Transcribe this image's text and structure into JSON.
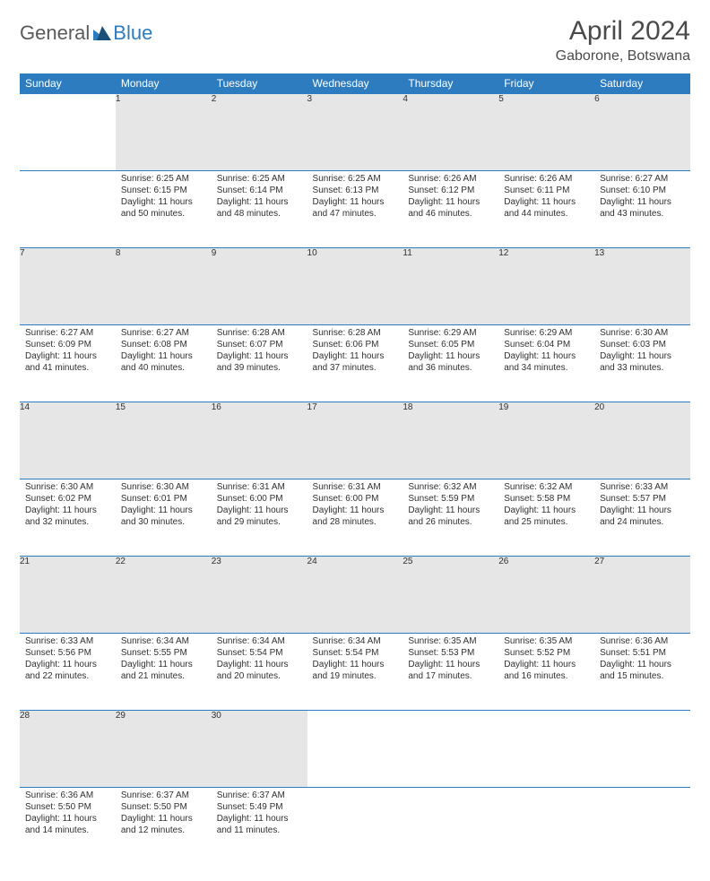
{
  "logo": {
    "text1": "General",
    "text2": "Blue"
  },
  "title": "April 2024",
  "subtitle": "Gaborone, Botswana",
  "colors": {
    "header_bg": "#2e7cc0",
    "header_text": "#ffffff",
    "daynum_bg": "#e6e6e6",
    "border": "#2e7cc0",
    "body_text": "#303030",
    "title_text": "#4a4a4a",
    "page_bg": "#ffffff"
  },
  "days": [
    "Sunday",
    "Monday",
    "Tuesday",
    "Wednesday",
    "Thursday",
    "Friday",
    "Saturday"
  ],
  "weeks": [
    {
      "nums": [
        "",
        "1",
        "2",
        "3",
        "4",
        "5",
        "6"
      ],
      "cells": [
        null,
        {
          "sunrise": "Sunrise: 6:25 AM",
          "sunset": "Sunset: 6:15 PM",
          "daylight": "Daylight: 11 hours and 50 minutes."
        },
        {
          "sunrise": "Sunrise: 6:25 AM",
          "sunset": "Sunset: 6:14 PM",
          "daylight": "Daylight: 11 hours and 48 minutes."
        },
        {
          "sunrise": "Sunrise: 6:25 AM",
          "sunset": "Sunset: 6:13 PM",
          "daylight": "Daylight: 11 hours and 47 minutes."
        },
        {
          "sunrise": "Sunrise: 6:26 AM",
          "sunset": "Sunset: 6:12 PM",
          "daylight": "Daylight: 11 hours and 46 minutes."
        },
        {
          "sunrise": "Sunrise: 6:26 AM",
          "sunset": "Sunset: 6:11 PM",
          "daylight": "Daylight: 11 hours and 44 minutes."
        },
        {
          "sunrise": "Sunrise: 6:27 AM",
          "sunset": "Sunset: 6:10 PM",
          "daylight": "Daylight: 11 hours and 43 minutes."
        }
      ]
    },
    {
      "nums": [
        "7",
        "8",
        "9",
        "10",
        "11",
        "12",
        "13"
      ],
      "cells": [
        {
          "sunrise": "Sunrise: 6:27 AM",
          "sunset": "Sunset: 6:09 PM",
          "daylight": "Daylight: 11 hours and 41 minutes."
        },
        {
          "sunrise": "Sunrise: 6:27 AM",
          "sunset": "Sunset: 6:08 PM",
          "daylight": "Daylight: 11 hours and 40 minutes."
        },
        {
          "sunrise": "Sunrise: 6:28 AM",
          "sunset": "Sunset: 6:07 PM",
          "daylight": "Daylight: 11 hours and 39 minutes."
        },
        {
          "sunrise": "Sunrise: 6:28 AM",
          "sunset": "Sunset: 6:06 PM",
          "daylight": "Daylight: 11 hours and 37 minutes."
        },
        {
          "sunrise": "Sunrise: 6:29 AM",
          "sunset": "Sunset: 6:05 PM",
          "daylight": "Daylight: 11 hours and 36 minutes."
        },
        {
          "sunrise": "Sunrise: 6:29 AM",
          "sunset": "Sunset: 6:04 PM",
          "daylight": "Daylight: 11 hours and 34 minutes."
        },
        {
          "sunrise": "Sunrise: 6:30 AM",
          "sunset": "Sunset: 6:03 PM",
          "daylight": "Daylight: 11 hours and 33 minutes."
        }
      ]
    },
    {
      "nums": [
        "14",
        "15",
        "16",
        "17",
        "18",
        "19",
        "20"
      ],
      "cells": [
        {
          "sunrise": "Sunrise: 6:30 AM",
          "sunset": "Sunset: 6:02 PM",
          "daylight": "Daylight: 11 hours and 32 minutes."
        },
        {
          "sunrise": "Sunrise: 6:30 AM",
          "sunset": "Sunset: 6:01 PM",
          "daylight": "Daylight: 11 hours and 30 minutes."
        },
        {
          "sunrise": "Sunrise: 6:31 AM",
          "sunset": "Sunset: 6:00 PM",
          "daylight": "Daylight: 11 hours and 29 minutes."
        },
        {
          "sunrise": "Sunrise: 6:31 AM",
          "sunset": "Sunset: 6:00 PM",
          "daylight": "Daylight: 11 hours and 28 minutes."
        },
        {
          "sunrise": "Sunrise: 6:32 AM",
          "sunset": "Sunset: 5:59 PM",
          "daylight": "Daylight: 11 hours and 26 minutes."
        },
        {
          "sunrise": "Sunrise: 6:32 AM",
          "sunset": "Sunset: 5:58 PM",
          "daylight": "Daylight: 11 hours and 25 minutes."
        },
        {
          "sunrise": "Sunrise: 6:33 AM",
          "sunset": "Sunset: 5:57 PM",
          "daylight": "Daylight: 11 hours and 24 minutes."
        }
      ]
    },
    {
      "nums": [
        "21",
        "22",
        "23",
        "24",
        "25",
        "26",
        "27"
      ],
      "cells": [
        {
          "sunrise": "Sunrise: 6:33 AM",
          "sunset": "Sunset: 5:56 PM",
          "daylight": "Daylight: 11 hours and 22 minutes."
        },
        {
          "sunrise": "Sunrise: 6:34 AM",
          "sunset": "Sunset: 5:55 PM",
          "daylight": "Daylight: 11 hours and 21 minutes."
        },
        {
          "sunrise": "Sunrise: 6:34 AM",
          "sunset": "Sunset: 5:54 PM",
          "daylight": "Daylight: 11 hours and 20 minutes."
        },
        {
          "sunrise": "Sunrise: 6:34 AM",
          "sunset": "Sunset: 5:54 PM",
          "daylight": "Daylight: 11 hours and 19 minutes."
        },
        {
          "sunrise": "Sunrise: 6:35 AM",
          "sunset": "Sunset: 5:53 PM",
          "daylight": "Daylight: 11 hours and 17 minutes."
        },
        {
          "sunrise": "Sunrise: 6:35 AM",
          "sunset": "Sunset: 5:52 PM",
          "daylight": "Daylight: 11 hours and 16 minutes."
        },
        {
          "sunrise": "Sunrise: 6:36 AM",
          "sunset": "Sunset: 5:51 PM",
          "daylight": "Daylight: 11 hours and 15 minutes."
        }
      ]
    },
    {
      "nums": [
        "28",
        "29",
        "30",
        "",
        "",
        "",
        ""
      ],
      "cells": [
        {
          "sunrise": "Sunrise: 6:36 AM",
          "sunset": "Sunset: 5:50 PM",
          "daylight": "Daylight: 11 hours and 14 minutes."
        },
        {
          "sunrise": "Sunrise: 6:37 AM",
          "sunset": "Sunset: 5:50 PM",
          "daylight": "Daylight: 11 hours and 12 minutes."
        },
        {
          "sunrise": "Sunrise: 6:37 AM",
          "sunset": "Sunset: 5:49 PM",
          "daylight": "Daylight: 11 hours and 11 minutes."
        },
        null,
        null,
        null,
        null
      ]
    }
  ]
}
